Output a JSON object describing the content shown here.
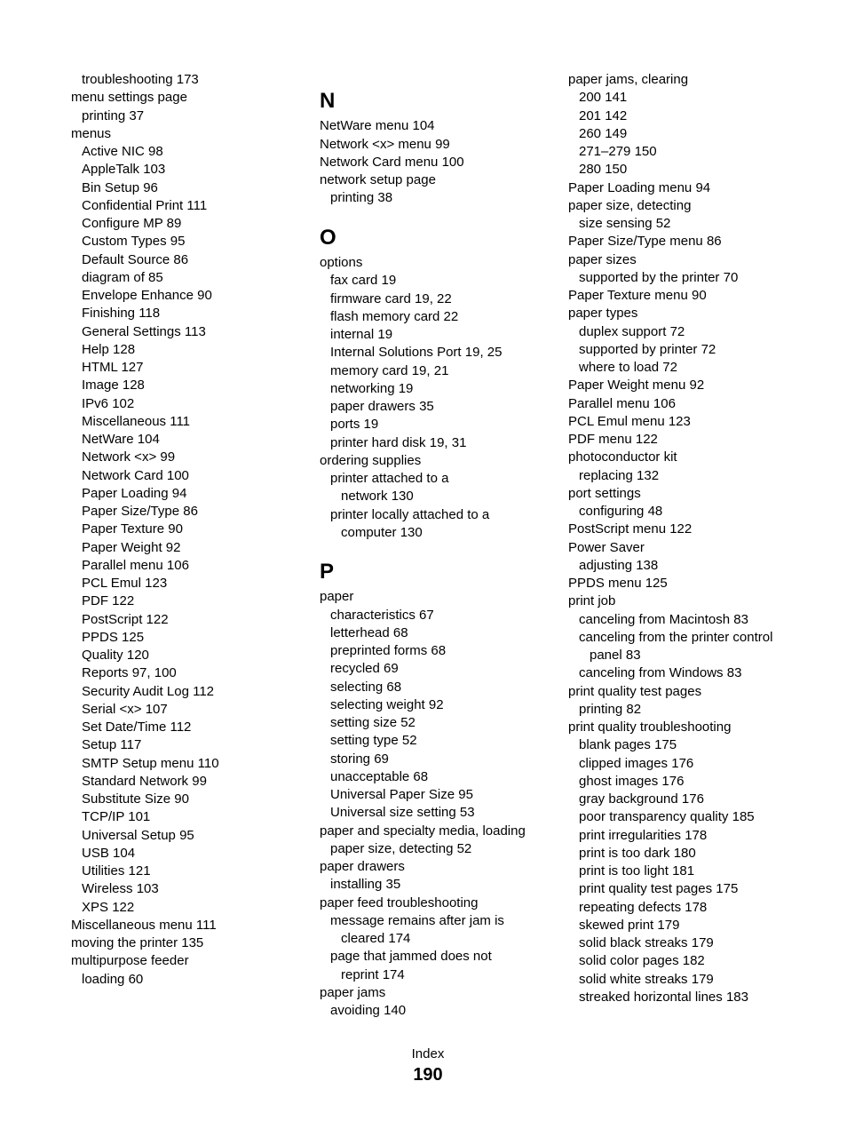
{
  "footer": {
    "label": "Index",
    "page": "190"
  },
  "col1": [
    {
      "t": "troubleshooting",
      "p": "173",
      "i": 1
    },
    {
      "t": "menu settings page",
      "p": "",
      "i": 0
    },
    {
      "t": "printing",
      "p": "37",
      "i": 1
    },
    {
      "t": "menus",
      "p": "",
      "i": 0
    },
    {
      "t": "Active NIC",
      "p": "98",
      "i": 1
    },
    {
      "t": "AppleTalk",
      "p": "103",
      "i": 1
    },
    {
      "t": "Bin Setup",
      "p": "96",
      "i": 1
    },
    {
      "t": "Confidential Print",
      "p": "111",
      "i": 1
    },
    {
      "t": "Configure MP",
      "p": "89",
      "i": 1
    },
    {
      "t": "Custom Types",
      "p": "95",
      "i": 1
    },
    {
      "t": "Default Source",
      "p": "86",
      "i": 1
    },
    {
      "t": "diagram of",
      "p": "85",
      "i": 1
    },
    {
      "t": "Envelope Enhance",
      "p": "90",
      "i": 1
    },
    {
      "t": "Finishing",
      "p": "118",
      "i": 1
    },
    {
      "t": "General Settings",
      "p": "113",
      "i": 1
    },
    {
      "t": "Help",
      "p": "128",
      "i": 1
    },
    {
      "t": "HTML",
      "p": "127",
      "i": 1
    },
    {
      "t": "Image",
      "p": "128",
      "i": 1
    },
    {
      "t": "IPv6",
      "p": "102",
      "i": 1
    },
    {
      "t": "Miscellaneous",
      "p": "111",
      "i": 1
    },
    {
      "t": "NetWare",
      "p": "104",
      "i": 1
    },
    {
      "t": "Network <x>",
      "p": "99",
      "i": 1
    },
    {
      "t": "Network Card",
      "p": "100",
      "i": 1
    },
    {
      "t": "Paper Loading",
      "p": "94",
      "i": 1
    },
    {
      "t": "Paper Size/Type",
      "p": "86",
      "i": 1
    },
    {
      "t": "Paper Texture",
      "p": "90",
      "i": 1
    },
    {
      "t": "Paper Weight",
      "p": "92",
      "i": 1
    },
    {
      "t": "Parallel menu",
      "p": "106",
      "i": 1
    },
    {
      "t": "PCL Emul",
      "p": "123",
      "i": 1
    },
    {
      "t": "PDF",
      "p": "122",
      "i": 1
    },
    {
      "t": "PostScript",
      "p": "122",
      "i": 1
    },
    {
      "t": "PPDS",
      "p": "125",
      "i": 1
    },
    {
      "t": "Quality",
      "p": "120",
      "i": 1
    },
    {
      "t": "Reports",
      "p": "97, 100",
      "i": 1
    },
    {
      "t": "Security Audit Log",
      "p": "112",
      "i": 1
    },
    {
      "t": "Serial <x>",
      "p": "107",
      "i": 1
    },
    {
      "t": "Set Date/Time",
      "p": "112",
      "i": 1
    },
    {
      "t": "Setup",
      "p": "117",
      "i": 1
    },
    {
      "t": "SMTP Setup menu",
      "p": "110",
      "i": 1
    },
    {
      "t": "Standard Network",
      "p": "99",
      "i": 1
    },
    {
      "t": "Substitute Size",
      "p": "90",
      "i": 1
    },
    {
      "t": "TCP/IP",
      "p": "101",
      "i": 1
    },
    {
      "t": "Universal Setup",
      "p": "95",
      "i": 1
    },
    {
      "t": "USB",
      "p": "104",
      "i": 1
    },
    {
      "t": "Utilities",
      "p": "121",
      "i": 1
    },
    {
      "t": "Wireless",
      "p": "103",
      "i": 1
    },
    {
      "t": "XPS",
      "p": "122",
      "i": 1
    },
    {
      "t": "Miscellaneous menu",
      "p": "111",
      "i": 0
    },
    {
      "t": "moving the printer",
      "p": "135",
      "i": 0
    },
    {
      "t": "multipurpose feeder",
      "p": "",
      "i": 0
    },
    {
      "t": "loading",
      "p": "60",
      "i": 1
    }
  ],
  "col2": [
    {
      "letter": "N"
    },
    {
      "t": "NetWare menu",
      "p": "104",
      "i": 0
    },
    {
      "t": "Network <x> menu",
      "p": "99",
      "i": 0
    },
    {
      "t": "Network Card menu",
      "p": "100",
      "i": 0
    },
    {
      "t": "network setup page",
      "p": "",
      "i": 0
    },
    {
      "t": "printing",
      "p": "38",
      "i": 1
    },
    {
      "letter": "O"
    },
    {
      "t": "options",
      "p": "",
      "i": 0
    },
    {
      "t": "fax card",
      "p": "19",
      "i": 1
    },
    {
      "t": "firmware card",
      "p": "19, 22",
      "i": 1
    },
    {
      "t": "flash memory card",
      "p": "22",
      "i": 1
    },
    {
      "t": "internal",
      "p": "19",
      "i": 1
    },
    {
      "t": "Internal Solutions Port",
      "p": "19, 25",
      "i": 1
    },
    {
      "t": "memory card",
      "p": "19, 21",
      "i": 1
    },
    {
      "t": "networking",
      "p": "19",
      "i": 1
    },
    {
      "t": "paper drawers",
      "p": "35",
      "i": 1
    },
    {
      "t": "ports",
      "p": "19",
      "i": 1
    },
    {
      "t": "printer hard disk",
      "p": "19, 31",
      "i": 1
    },
    {
      "t": "ordering supplies",
      "p": "",
      "i": 0
    },
    {
      "t": "printer attached to a",
      "p": "",
      "i": 1
    },
    {
      "t": "network",
      "p": "130",
      "i": 2
    },
    {
      "t": "printer locally attached to a",
      "p": "",
      "i": 1
    },
    {
      "t": "computer",
      "p": "130",
      "i": 2
    },
    {
      "letter": "P"
    },
    {
      "t": "paper",
      "p": "",
      "i": 0
    },
    {
      "t": "characteristics",
      "p": "67",
      "i": 1
    },
    {
      "t": "letterhead",
      "p": "68",
      "i": 1
    },
    {
      "t": "preprinted forms",
      "p": "68",
      "i": 1
    },
    {
      "t": "recycled",
      "p": "69",
      "i": 1
    },
    {
      "t": "selecting",
      "p": "68",
      "i": 1
    },
    {
      "t": "selecting weight",
      "p": "92",
      "i": 1
    },
    {
      "t": "setting size",
      "p": "52",
      "i": 1
    },
    {
      "t": "setting type",
      "p": "52",
      "i": 1
    },
    {
      "t": "storing",
      "p": "69",
      "i": 1
    },
    {
      "t": "unacceptable",
      "p": "68",
      "i": 1
    },
    {
      "t": "Universal Paper Size",
      "p": "95",
      "i": 1
    },
    {
      "t": "Universal size setting",
      "p": "53",
      "i": 1
    },
    {
      "t": "paper and specialty media, loading",
      "p": "",
      "i": 0
    },
    {
      "t": "paper size, detecting",
      "p": "52",
      "i": 1
    },
    {
      "t": "paper drawers",
      "p": "",
      "i": 0
    },
    {
      "t": "installing",
      "p": "35",
      "i": 1
    },
    {
      "t": "paper feed troubleshooting",
      "p": "",
      "i": 0
    },
    {
      "t": "message remains after jam is",
      "p": "",
      "i": 1
    },
    {
      "t": "cleared",
      "p": "174",
      "i": 2
    },
    {
      "t": "page that jammed does not",
      "p": "",
      "i": 1
    },
    {
      "t": "reprint",
      "p": "174",
      "i": 2
    },
    {
      "t": "paper jams",
      "p": "",
      "i": 0
    },
    {
      "t": "avoiding",
      "p": "140",
      "i": 1
    }
  ],
  "col3": [
    {
      "t": "paper jams, clearing",
      "p": "",
      "i": 0
    },
    {
      "t": "200",
      "p": "141",
      "i": 1
    },
    {
      "t": "201",
      "p": "142",
      "i": 1
    },
    {
      "t": "260",
      "p": "149",
      "i": 1
    },
    {
      "t": "271–279",
      "p": "150",
      "i": 1
    },
    {
      "t": "280",
      "p": "150",
      "i": 1
    },
    {
      "t": "Paper Loading menu",
      "p": "94",
      "i": 0
    },
    {
      "t": "paper size, detecting",
      "p": "",
      "i": 0
    },
    {
      "t": "size sensing",
      "p": "52",
      "i": 1
    },
    {
      "t": "Paper Size/Type menu",
      "p": "86",
      "i": 0
    },
    {
      "t": "paper sizes",
      "p": "",
      "i": 0
    },
    {
      "t": "supported by the printer",
      "p": "70",
      "i": 1
    },
    {
      "t": "Paper Texture menu",
      "p": "90",
      "i": 0
    },
    {
      "t": "paper types",
      "p": "",
      "i": 0
    },
    {
      "t": "duplex support",
      "p": "72",
      "i": 1
    },
    {
      "t": "supported by printer",
      "p": "72",
      "i": 1
    },
    {
      "t": "where to load",
      "p": "72",
      "i": 1
    },
    {
      "t": "Paper Weight menu",
      "p": "92",
      "i": 0
    },
    {
      "t": "Parallel menu",
      "p": "106",
      "i": 0
    },
    {
      "t": "PCL Emul menu",
      "p": "123",
      "i": 0
    },
    {
      "t": "PDF menu",
      "p": "122",
      "i": 0
    },
    {
      "t": "photoconductor kit",
      "p": "",
      "i": 0
    },
    {
      "t": "replacing",
      "p": "132",
      "i": 1
    },
    {
      "t": "port settings",
      "p": "",
      "i": 0
    },
    {
      "t": "configuring",
      "p": "48",
      "i": 1
    },
    {
      "t": "PostScript menu",
      "p": "122",
      "i": 0
    },
    {
      "t": "Power Saver",
      "p": "",
      "i": 0
    },
    {
      "t": "adjusting",
      "p": "138",
      "i": 1
    },
    {
      "t": "PPDS menu",
      "p": "125",
      "i": 0
    },
    {
      "t": "print job",
      "p": "",
      "i": 0
    },
    {
      "t": "canceling from Macintosh",
      "p": "83",
      "i": 1
    },
    {
      "t": "canceling from the printer control",
      "p": "",
      "i": 1
    },
    {
      "t": "panel",
      "p": "83",
      "i": 2
    },
    {
      "t": "canceling from Windows",
      "p": "83",
      "i": 1
    },
    {
      "t": "print quality test pages",
      "p": "",
      "i": 0
    },
    {
      "t": "printing",
      "p": "82",
      "i": 1
    },
    {
      "t": "print quality troubleshooting",
      "p": "",
      "i": 0
    },
    {
      "t": "blank pages",
      "p": "175",
      "i": 1
    },
    {
      "t": "clipped images",
      "p": "176",
      "i": 1
    },
    {
      "t": "ghost images",
      "p": "176",
      "i": 1
    },
    {
      "t": "gray background",
      "p": "176",
      "i": 1
    },
    {
      "t": "poor transparency quality",
      "p": "185",
      "i": 1
    },
    {
      "t": "print irregularities",
      "p": "178",
      "i": 1
    },
    {
      "t": "print is too dark",
      "p": "180",
      "i": 1
    },
    {
      "t": "print is too light",
      "p": "181",
      "i": 1
    },
    {
      "t": "print quality test pages",
      "p": "175",
      "i": 1
    },
    {
      "t": "repeating defects",
      "p": "178",
      "i": 1
    },
    {
      "t": "skewed print",
      "p": "179",
      "i": 1
    },
    {
      "t": "solid black streaks",
      "p": "179",
      "i": 1
    },
    {
      "t": "solid color pages",
      "p": "182",
      "i": 1
    },
    {
      "t": "solid white streaks",
      "p": "179",
      "i": 1
    },
    {
      "t": "streaked horizontal lines",
      "p": "183",
      "i": 1
    }
  ]
}
